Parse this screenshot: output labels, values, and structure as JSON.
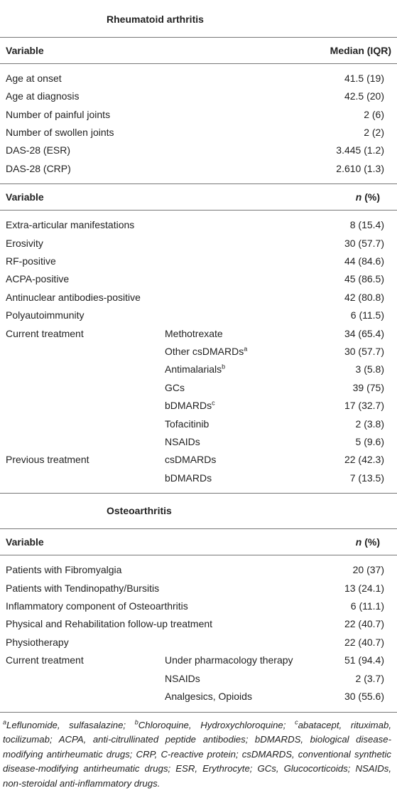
{
  "sections": [
    {
      "title": "Rheumatoid arthritis",
      "groups": [
        {
          "header": {
            "label": "Variable",
            "value": "Median (IQR)"
          },
          "rows": [
            {
              "label": "Age at onset",
              "value": "41.5 (19)"
            },
            {
              "label": "Age at diagnosis",
              "value": "42.5 (20)"
            },
            {
              "label": "Number of painful joints",
              "value": "2 (6)"
            },
            {
              "label": "Number of swollen joints",
              "value": "2 (2)"
            },
            {
              "label": "DAS-28 (ESR)",
              "value": "3.445 (1.2)"
            },
            {
              "label": "DAS-28 (CRP)",
              "value": "2.610 (1.3)"
            }
          ]
        },
        {
          "header": {
            "label": "Variable",
            "value_italic": "n",
            "value": " (%)"
          },
          "rows": [
            {
              "label": "Extra-articular manifestations",
              "value": "8 (15.4)"
            },
            {
              "label": "Erosivity",
              "value": "30 (57.7)"
            },
            {
              "label": "RF-positive",
              "value": "44 (84.6)"
            },
            {
              "label": "ACPA-positive",
              "value": "45 (86.5)"
            },
            {
              "label": "Antinuclear antibodies-positive",
              "value": "42 (80.8)"
            },
            {
              "label": "Polyautoimmunity",
              "value": "6 (11.5)"
            },
            {
              "label": "Current treatment",
              "sub": "Methotrexate",
              "value": "34 (65.4)"
            },
            {
              "sub": "Other csDMARDs",
              "sub_sup": "a",
              "value": "30 (57.7)"
            },
            {
              "sub": "Antimalarials",
              "sub_sup": "b",
              "value": "3 (5.8)"
            },
            {
              "sub": "GCs",
              "value": "39 (75)"
            },
            {
              "sub": "bDMARDs",
              "sub_sup": "c",
              "value": "17 (32.7)"
            },
            {
              "sub": "Tofacitinib",
              "value": "2 (3.8)"
            },
            {
              "sub": "NSAIDs",
              "value": "5 (9.6)"
            },
            {
              "label": "Previous treatment",
              "sub": "csDMARDs",
              "value": "22 (42.3)"
            },
            {
              "sub": "bDMARDs",
              "value": "7 (13.5)"
            }
          ]
        }
      ]
    },
    {
      "title": "Osteoarthritis",
      "groups": [
        {
          "header": {
            "label": "Variable",
            "value_italic": "n",
            "value": " (%)"
          },
          "rows": [
            {
              "label": "Patients with Fibromyalgia",
              "value": "20 (37)"
            },
            {
              "label": "Patients with Tendinopathy/Bursitis",
              "value": "13 (24.1)"
            },
            {
              "label": "Inflammatory component of Osteoarthritis",
              "value": "6 (11.1)"
            },
            {
              "label": "Physical and Rehabilitation follow-up treatment",
              "value": "22 (40.7)"
            },
            {
              "label": "Physiotherapy",
              "value": "22 (40.7)"
            },
            {
              "label": "Current treatment",
              "sub": "Under pharmacology therapy",
              "value": "51 (94.4)"
            },
            {
              "sub": "NSAIDs",
              "value": "2 (3.7)"
            },
            {
              "sub": "Analgesics, Opioids",
              "value": "30 (55.6)"
            }
          ]
        }
      ]
    }
  ],
  "footnote": [
    {
      "sup": "a"
    },
    {
      "text": "Leflunomide, sulfasalazine; "
    },
    {
      "sup": "b"
    },
    {
      "text": "Chloroquine, Hydroxychloroquine; "
    },
    {
      "sup": "c"
    },
    {
      "text": "abatacept, rituximab, tocilizumab; ACPA, anti-citrullinated peptide antibodies; bDMARDS, biological disease-modifying antirheumatic drugs; CRP, C-reactive protein; csDMARDS, conventional synthetic disease-modifying antirheumatic drugs; ESR, Erythrocyte; GCs, Glucocorticoids; NSAIDs, non-steroidal anti-inflammatory drugs."
    }
  ]
}
